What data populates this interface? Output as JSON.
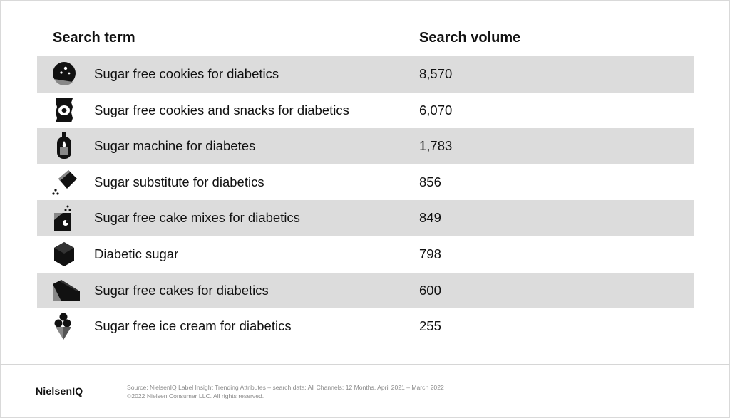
{
  "chart_data": {
    "type": "table",
    "columns": [
      "Search term",
      "Search volume"
    ],
    "rows": [
      {
        "term": "Sugar free cookies for diabetics",
        "volume": "8,570",
        "icon": "cookie-icon"
      },
      {
        "term": "Sugar free cookies and snacks for diabetics",
        "volume": "6,070",
        "icon": "snack-bag-icon"
      },
      {
        "term": "Sugar machine for diabetes",
        "volume": "1,783",
        "icon": "glucose-meter-icon"
      },
      {
        "term": "Sugar substitute for diabetics",
        "volume": "856",
        "icon": "sweetener-packet-icon"
      },
      {
        "term": "Sugar free cake mixes for diabetics",
        "volume": "849",
        "icon": "cake-mix-box-icon"
      },
      {
        "term": "Diabetic sugar",
        "volume": "798",
        "icon": "sugar-cube-icon"
      },
      {
        "term": "Sugar free cakes for diabetics",
        "volume": "600",
        "icon": "cake-slice-icon"
      },
      {
        "term": "Sugar free ice cream for diabetics",
        "volume": "255",
        "icon": "ice-cream-cone-icon"
      }
    ]
  },
  "colors": {
    "row_shade": "#dcdcdc",
    "text": "#111111",
    "footer_text": "#8a8a8a"
  },
  "footer": {
    "logo": "NielsenIQ",
    "source_line1": "Source: NielsenIQ Label Insight Trending Attributes – search data; All Channels; 12 Months, April 2021 – March 2022",
    "source_line2": "©2022 Nielsen Consumer LLC. All rights reserved."
  }
}
